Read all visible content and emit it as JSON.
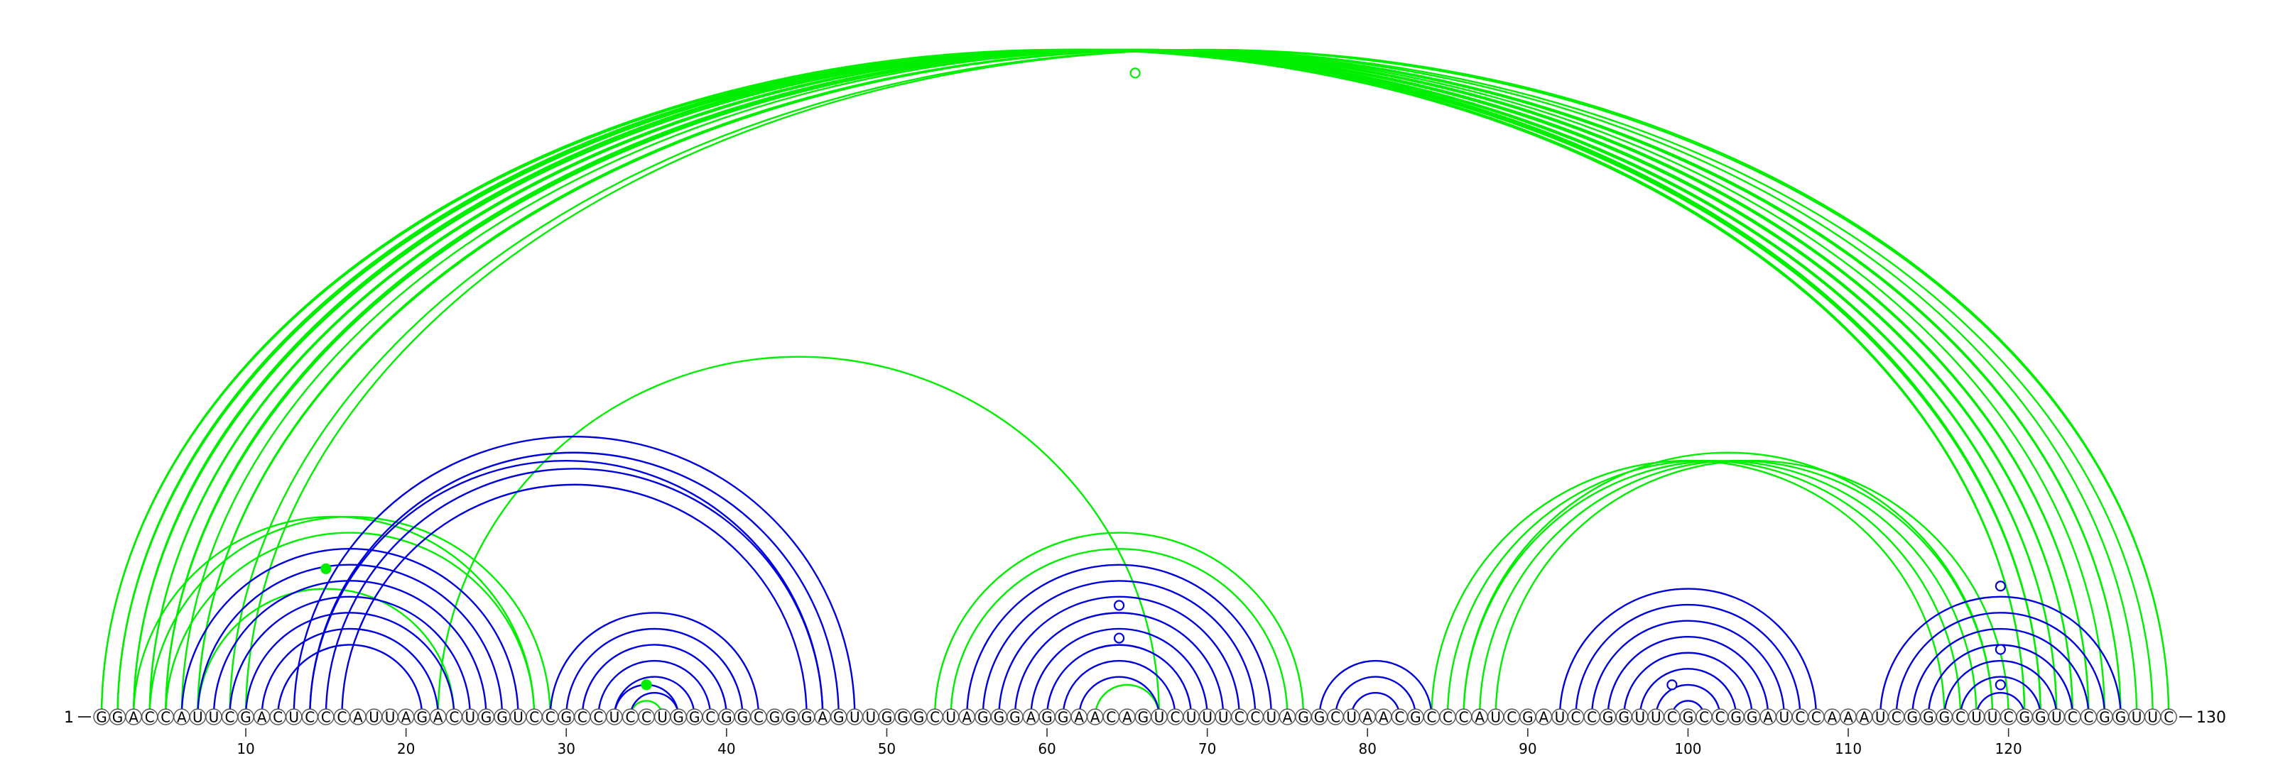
{
  "sequence": "GGACCAUUCGACUCCCAUUAGACUGGUCCGCCUCCUGGCGGCGGGAGUUGGGCUAGGGAGGAACAGUCUUUCCUAGGCUAACGCCCAUCGAUCCGGUUCGCCGGAUCCAAAUCGGGCUUCGGUCCGGUUC",
  "start_label": "1",
  "end_label": "130",
  "tick_labels": [
    "10",
    "20",
    "30",
    "40",
    "50",
    "60",
    "70",
    "80",
    "90",
    "100",
    "110",
    "120"
  ],
  "colors": {
    "canonical": "#0000dd",
    "noncanonical": "#00ee00",
    "base_fill": "#ffffff",
    "base_stroke": "#555555",
    "text": "#000000"
  },
  "arcs": [
    {
      "i": 1,
      "j": 121,
      "type": "noncanonical"
    },
    {
      "i": 1,
      "j": 122,
      "type": "noncanonical"
    },
    {
      "i": 2,
      "j": 121,
      "type": "noncanonical"
    },
    {
      "i": 2,
      "j": 122,
      "type": "noncanonical"
    },
    {
      "i": 2,
      "j": 123,
      "type": "noncanonical"
    },
    {
      "i": 3,
      "j": 122,
      "type": "noncanonical"
    },
    {
      "i": 3,
      "j": 123,
      "type": "noncanonical"
    },
    {
      "i": 3,
      "j": 124,
      "type": "noncanonical"
    },
    {
      "i": 4,
      "j": 124,
      "type": "noncanonical"
    },
    {
      "i": 4,
      "j": 125,
      "type": "noncanonical"
    },
    {
      "i": 5,
      "j": 125,
      "type": "noncanonical"
    },
    {
      "i": 5,
      "j": 126,
      "type": "noncanonical"
    },
    {
      "i": 5,
      "j": 127,
      "type": "noncanonical"
    },
    {
      "i": 6,
      "j": 127,
      "type": "noncanonical"
    },
    {
      "i": 7,
      "j": 128,
      "type": "noncanonical"
    },
    {
      "i": 7,
      "j": 129,
      "type": "noncanonical"
    },
    {
      "i": 9,
      "j": 130,
      "type": "noncanonical"
    },
    {
      "i": 10,
      "j": 130,
      "type": "noncanonical"
    },
    {
      "i": 3,
      "j": 28,
      "type": "noncanonical"
    },
    {
      "i": 4,
      "j": 29,
      "type": "noncanonical"
    },
    {
      "i": 5,
      "j": 28,
      "type": "noncanonical"
    },
    {
      "i": 7,
      "j": 23,
      "type": "noncanonical"
    },
    {
      "i": 22,
      "j": 67,
      "type": "noncanonical"
    },
    {
      "i": 53,
      "j": 76,
      "type": "noncanonical"
    },
    {
      "i": 54,
      "j": 75,
      "type": "noncanonical"
    },
    {
      "i": 84,
      "j": 116,
      "type": "noncanonical"
    },
    {
      "i": 85,
      "j": 117,
      "type": "noncanonical"
    },
    {
      "i": 86,
      "j": 118,
      "type": "noncanonical"
    },
    {
      "i": 86,
      "j": 119,
      "type": "noncanonical"
    },
    {
      "i": 87,
      "j": 119,
      "type": "noncanonical"
    },
    {
      "i": 88,
      "j": 120,
      "type": "noncanonical"
    },
    {
      "i": 34,
      "j": 36,
      "type": "noncanonical"
    },
    {
      "i": 63,
      "j": 67,
      "type": "noncanonical"
    },
    {
      "i": 6,
      "j": 27,
      "type": "canonical"
    },
    {
      "i": 7,
      "j": 26,
      "type": "canonical"
    },
    {
      "i": 8,
      "j": 25,
      "type": "canonical"
    },
    {
      "i": 9,
      "j": 24,
      "type": "canonical"
    },
    {
      "i": 10,
      "j": 23,
      "type": "canonical"
    },
    {
      "i": 11,
      "j": 22,
      "type": "canonical"
    },
    {
      "i": 12,
      "j": 21,
      "type": "canonical"
    },
    {
      "i": 13,
      "j": 48,
      "type": "canonical"
    },
    {
      "i": 14,
      "j": 47,
      "type": "canonical"
    },
    {
      "i": 14,
      "j": 46,
      "type": "canonical"
    },
    {
      "i": 15,
      "j": 46,
      "type": "canonical"
    },
    {
      "i": 16,
      "j": 45,
      "type": "canonical"
    },
    {
      "i": 29,
      "j": 42,
      "type": "canonical"
    },
    {
      "i": 30,
      "j": 41,
      "type": "canonical"
    },
    {
      "i": 31,
      "j": 40,
      "type": "canonical"
    },
    {
      "i": 32,
      "j": 39,
      "type": "canonical"
    },
    {
      "i": 33,
      "j": 38,
      "type": "canonical"
    },
    {
      "i": 33,
      "j": 37,
      "type": "canonical"
    },
    {
      "i": 34,
      "j": 37,
      "type": "canonical"
    },
    {
      "i": 55,
      "j": 74,
      "type": "canonical"
    },
    {
      "i": 56,
      "j": 73,
      "type": "canonical"
    },
    {
      "i": 57,
      "j": 72,
      "type": "canonical"
    },
    {
      "i": 58,
      "j": 71,
      "type": "canonical"
    },
    {
      "i": 59,
      "j": 70,
      "type": "canonical"
    },
    {
      "i": 60,
      "j": 69,
      "type": "canonical"
    },
    {
      "i": 61,
      "j": 68,
      "type": "canonical"
    },
    {
      "i": 62,
      "j": 67,
      "type": "canonical"
    },
    {
      "i": 77,
      "j": 84,
      "type": "canonical"
    },
    {
      "i": 78,
      "j": 83,
      "type": "canonical"
    },
    {
      "i": 79,
      "j": 82,
      "type": "canonical"
    },
    {
      "i": 92,
      "j": 108,
      "type": "canonical"
    },
    {
      "i": 93,
      "j": 107,
      "type": "canonical"
    },
    {
      "i": 94,
      "j": 106,
      "type": "canonical"
    },
    {
      "i": 95,
      "j": 105,
      "type": "canonical"
    },
    {
      "i": 96,
      "j": 104,
      "type": "canonical"
    },
    {
      "i": 97,
      "j": 103,
      "type": "canonical"
    },
    {
      "i": 98,
      "j": 102,
      "type": "canonical"
    },
    {
      "i": 99,
      "j": 101,
      "type": "canonical"
    },
    {
      "i": 112,
      "j": 127,
      "type": "canonical"
    },
    {
      "i": 113,
      "j": 126,
      "type": "canonical"
    },
    {
      "i": 114,
      "j": 125,
      "type": "canonical"
    },
    {
      "i": 115,
      "j": 124,
      "type": "canonical"
    },
    {
      "i": 116,
      "j": 123,
      "type": "canonical"
    },
    {
      "i": 117,
      "j": 122,
      "type": "canonical"
    },
    {
      "i": 118,
      "j": 121,
      "type": "canonical"
    }
  ],
  "markers": [
    {
      "pos": 65.5,
      "level": 0.965,
      "type": "noncanonical",
      "filled": false
    },
    {
      "pos": 15,
      "level": 0.222,
      "type": "noncanonical",
      "filled": true
    },
    {
      "pos": 35,
      "level": 0.048,
      "type": "noncanonical",
      "filled": true
    },
    {
      "pos": 64.5,
      "level": 0.167,
      "type": "canonical",
      "filled": false
    },
    {
      "pos": 64.5,
      "level": 0.118,
      "type": "canonical",
      "filled": false
    },
    {
      "pos": 99,
      "level": 0.048,
      "type": "canonical",
      "filled": false
    },
    {
      "pos": 119.5,
      "level": 0.196,
      "type": "canonical",
      "filled": false
    },
    {
      "pos": 119.5,
      "level": 0.101,
      "type": "canonical",
      "filled": false
    },
    {
      "pos": 119.5,
      "level": 0.048,
      "type": "canonical",
      "filled": false
    }
  ]
}
